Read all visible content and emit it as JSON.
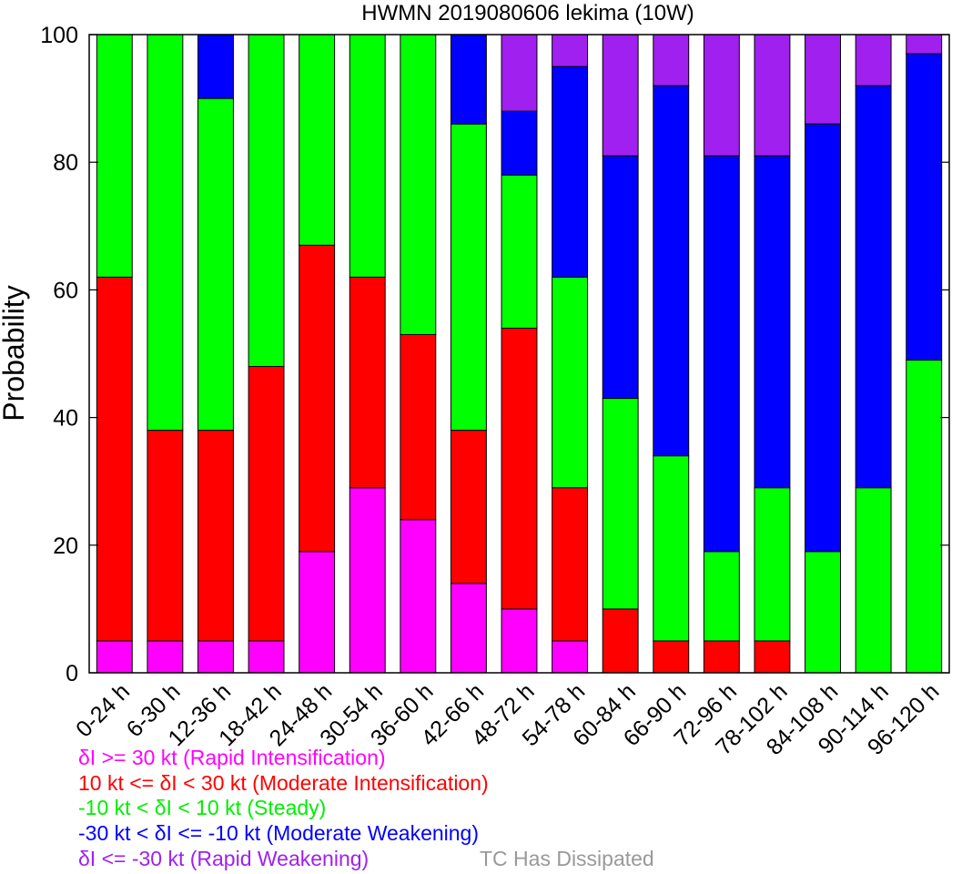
{
  "chart_data": {
    "type": "bar",
    "stacked": true,
    "title": "HWMN 2019080606 lekima (10W)",
    "ylabel": "Probability",
    "xlabel": "",
    "ylim": [
      0,
      100
    ],
    "yticks": [
      "0",
      "20",
      "40",
      "60",
      "80",
      "100"
    ],
    "grid": false,
    "categories": [
      "0-24 h",
      "6-30 h",
      "12-36 h",
      "18-42 h",
      "24-48 h",
      "30-54 h",
      "36-60 h",
      "42-66 h",
      "48-72 h",
      "54-78 h",
      "60-84 h",
      "66-90 h",
      "72-96 h",
      "78-102 h",
      "84-108 h",
      "90-114 h",
      "96-120 h"
    ],
    "series": [
      {
        "name": "δI >= 30 kt (Rapid Intensification)",
        "color": "#ff00ff",
        "values": [
          5,
          5,
          5,
          5,
          19,
          29,
          24,
          14,
          10,
          5,
          0,
          0,
          0,
          0,
          0,
          0,
          0
        ]
      },
      {
        "name": "10 kt <= δI < 30 kt (Moderate Intensification)",
        "color": "#ff0000",
        "values": [
          57,
          33,
          33,
          43,
          48,
          33,
          29,
          24,
          44,
          24,
          10,
          5,
          5,
          5,
          0,
          0,
          0
        ]
      },
      {
        "name": "-10 kt < δI < 10 kt (Steady)",
        "color": "#00ff00",
        "values": [
          38,
          62,
          52,
          52,
          33,
          38,
          47,
          48,
          24,
          33,
          33,
          29,
          14,
          24,
          19,
          29,
          49
        ]
      },
      {
        "name": "-30 kt < δI <= -10 kt (Moderate Weakening)",
        "color": "#0000ff",
        "values": [
          0,
          0,
          10,
          0,
          0,
          0,
          0,
          14,
          10,
          33,
          38,
          58,
          62,
          52,
          67,
          63,
          48
        ]
      },
      {
        "name": "δI <= -30 kt (Rapid Weakening)",
        "color": "#a020f0",
        "values": [
          0,
          0,
          0,
          0,
          0,
          0,
          0,
          0,
          12,
          5,
          19,
          8,
          19,
          19,
          14,
          8,
          3
        ]
      }
    ],
    "legend": {
      "placement": "bottom",
      "dissipated_label": "TC Has Dissipated",
      "dissipated_color": "#999999"
    }
  }
}
